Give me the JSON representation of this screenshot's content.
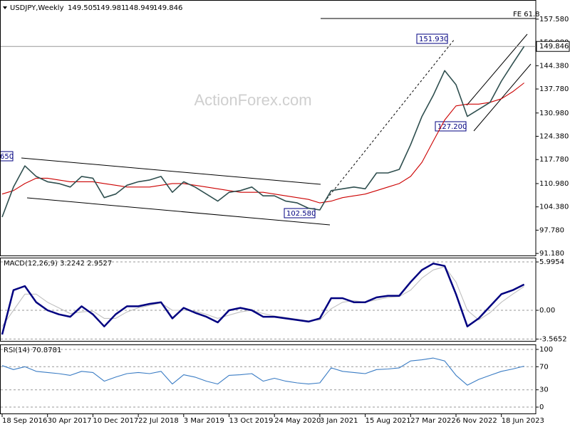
{
  "chart_data": [
    {
      "type": "line",
      "title": "USDJPY,Weekly",
      "ohlc_labels": [
        "149.505",
        "149.981",
        "148.949",
        "149.846"
      ],
      "watermark": "ActionForex.com",
      "annotations": [
        "FE 61.8",
        "151.930",
        "127.200",
        "102.580",
        "650"
      ],
      "price_line": {
        "value": 149.846,
        "label": "149.846"
      },
      "ylim": [
        90.4,
        163.0
      ],
      "yticks": [
        {
          "value": 157.58,
          "label": "157.580"
        },
        {
          "value": 150.98,
          "label": "150.980"
        },
        {
          "value": 144.38,
          "label": "144.380"
        },
        {
          "value": 137.78,
          "label": "137.780"
        },
        {
          "value": 130.98,
          "label": "130.980"
        },
        {
          "value": 124.38,
          "label": "124.380"
        },
        {
          "value": 117.78,
          "label": "117.780"
        },
        {
          "value": 110.98,
          "label": "110.980"
        },
        {
          "value": 104.38,
          "label": "104.380"
        },
        {
          "value": 97.78,
          "label": "97.780"
        },
        {
          "value": 91.18,
          "label": "91.180"
        }
      ],
      "grid": false,
      "series": [
        {
          "color": "#cc0000",
          "values": [
            108,
            109,
            111,
            112.5,
            112.5,
            112,
            111.5,
            111.5,
            111.5,
            111,
            110.5,
            110,
            110,
            110,
            110.5,
            111,
            111,
            110.5,
            110,
            109.5,
            109,
            108.5,
            108.5,
            108.5,
            108,
            107.5,
            107,
            106.5,
            105.5,
            106,
            107,
            107.5,
            108,
            109,
            110,
            111,
            113,
            117,
            123,
            129,
            133,
            133.5,
            133.5,
            134,
            135,
            137,
            139.5
          ]
        },
        {
          "color": "#2f4f4f",
          "values": [
            101.5,
            110,
            116,
            113,
            111.5,
            111,
            110,
            113,
            112.5,
            107,
            108,
            110.5,
            111.5,
            112,
            113,
            108.5,
            111.5,
            110,
            108,
            106,
            108.5,
            109,
            110,
            107.5,
            107.5,
            106,
            105.5,
            104,
            103.5,
            109,
            109.5,
            110,
            109.5,
            114,
            114,
            115,
            122,
            130,
            136,
            143,
            139,
            130,
            132,
            134,
            140,
            145,
            149.846
          ]
        }
      ]
    },
    {
      "type": "line",
      "title": "MACD(12,26,9) 3.2242 2.9527",
      "ylim": [
        -3.88,
        6.53
      ],
      "yticks": [
        5.9954,
        {
          "value": 0,
          "label": "0.00"
        },
        -3.5652
      ],
      "grid": true,
      "series": [
        {
          "color": "#c0c0c0",
          "values": [
            -2,
            0,
            2,
            2,
            1,
            0.3,
            -0.4,
            -0.2,
            -0.1,
            -1,
            -1,
            -0.2,
            0.3,
            0.6,
            0.9,
            0,
            0,
            -0.1,
            -0.5,
            -1,
            -0.6,
            -0.2,
            0,
            -0.4,
            -0.7,
            -0.9,
            -1.1,
            -1.3,
            -1.2,
            0.2,
            1,
            1.2,
            1,
            1.3,
            1.6,
            1.7,
            2.5,
            4,
            5,
            5.4,
            3.5,
            0,
            -1.2,
            -0.3,
            1,
            2,
            2.95
          ]
        },
        {
          "color": "#000080",
          "values": [
            -3,
            2.5,
            3,
            1,
            0,
            -0.5,
            -0.8,
            0.5,
            -0.5,
            -2,
            -0.5,
            0.5,
            0.5,
            0.8,
            1,
            -1,
            0.3,
            -0.3,
            -0.8,
            -1.5,
            0,
            0.3,
            0,
            -0.8,
            -0.8,
            -1,
            -1.2,
            -1.4,
            -1,
            1.5,
            1.5,
            1,
            1,
            1.6,
            1.8,
            1.8,
            3.5,
            5,
            5.8,
            5.5,
            2,
            -2,
            -1,
            0.5,
            2,
            2.5,
            3.2
          ]
        }
      ]
    },
    {
      "type": "line",
      "title": "RSI(14) 70.8781",
      "ylim": [
        -12.3,
        108.6
      ],
      "yticks": [
        100,
        70,
        30,
        0
      ],
      "grid": true,
      "categories": [
        "18 Sep 2016",
        null,
        null,
        null,
        "30 Apr 2017",
        null,
        null,
        null,
        "10 Dec 2017",
        null,
        null,
        null,
        "22 Jul 2018",
        null,
        null,
        null,
        "3 Mar 2019",
        null,
        null,
        null,
        "13 Oct 2019",
        null,
        null,
        null,
        "24 May 2020",
        null,
        null,
        null,
        "3 Jan 2021",
        null,
        null,
        null,
        "15 Aug 2021",
        null,
        null,
        null,
        "27 Mar 2022",
        null,
        null,
        null,
        "6 Nov 2022",
        null,
        null,
        null,
        "18 Jun 2023",
        null,
        null
      ],
      "series": [
        {
          "color": "#3a7cc4",
          "values": [
            72,
            65,
            70,
            62,
            60,
            58,
            55,
            62,
            60,
            45,
            52,
            58,
            60,
            58,
            62,
            40,
            56,
            52,
            45,
            40,
            55,
            56,
            58,
            45,
            50,
            45,
            42,
            40,
            42,
            68,
            62,
            60,
            58,
            65,
            66,
            68,
            80,
            82,
            85,
            80,
            55,
            38,
            48,
            55,
            62,
            66,
            71
          ]
        }
      ]
    }
  ]
}
